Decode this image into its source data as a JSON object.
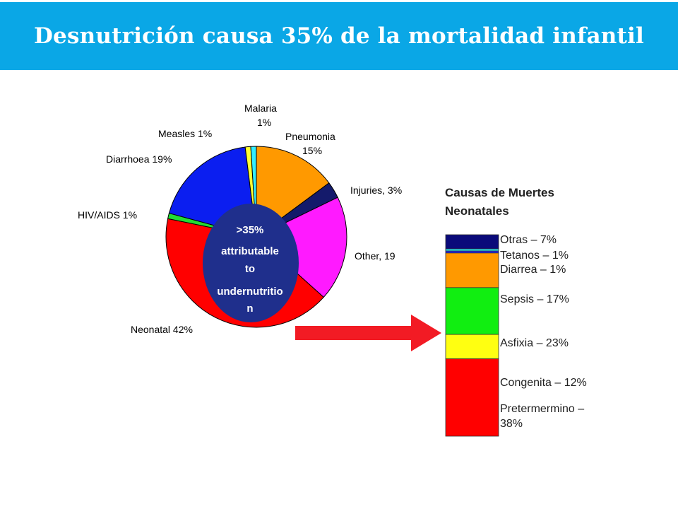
{
  "header": {
    "title": "Desnutrición causa 35% de la mortalidad infantil"
  },
  "colors": {
    "header_bg": "#0aa7e6",
    "arrow": "#f21b24",
    "center_circle": "#1f2f8c"
  },
  "chart_data": [
    {
      "type": "pie",
      "title": "",
      "slices": [
        {
          "label_lines": [
            "Pneumonia",
            "15%"
          ],
          "value": 15,
          "color": "#ff9900"
        },
        {
          "label_lines": [
            "Injuries, 3%"
          ],
          "value": 3,
          "color": "#141a6b"
        },
        {
          "label_lines": [
            "Other, 19"
          ],
          "value": 19,
          "color": "#ff1aff"
        },
        {
          "label_lines": [
            "Neonatal 42%"
          ],
          "value": 42,
          "color": "#ff0000"
        },
        {
          "label_lines": [
            "HIV/AIDS  1%"
          ],
          "value": 1,
          "color": "#22dd33"
        },
        {
          "label_lines": [
            "Diarrhoea 19%"
          ],
          "value": 19,
          "color": "#0b1ef0"
        },
        {
          "label_lines": [
            "Measles   1%"
          ],
          "value": 1,
          "color": "#ffff33"
        },
        {
          "label_lines": [
            "Malaria",
            "1%"
          ],
          "value": 1,
          "color": "#33eeff"
        }
      ],
      "center_text": [
        ">35%",
        "attributable",
        "to",
        "undernutritio",
        "n"
      ]
    },
    {
      "type": "bar",
      "stacked": true,
      "title_lines": [
        "Causas de Muertes",
        "Neonatales"
      ],
      "segments": [
        {
          "label_lines": [
            "Otras – 7%"
          ],
          "value": 7,
          "color": "#0a0a7a"
        },
        {
          "label_lines": [
            "Tetanos – 1%"
          ],
          "value": 1,
          "color": "#22eeff"
        },
        {
          "label_lines": [
            "Diarrea – 1%"
          ],
          "value": 1,
          "color": "#1a22f0"
        },
        {
          "label_lines": [
            "Sepsis – 17%"
          ],
          "value": 17,
          "color": "#ff9900"
        },
        {
          "label_lines": [
            "Asfixia – 23%"
          ],
          "value": 23,
          "color": "#11ee11"
        },
        {
          "label_lines": [
            "Congenita – 12%"
          ],
          "value": 12,
          "color": "#ffff11"
        },
        {
          "label_lines": [
            "Pretermermino –",
            "38%"
          ],
          "value": 38,
          "color": "#ff0000"
        }
      ]
    }
  ]
}
